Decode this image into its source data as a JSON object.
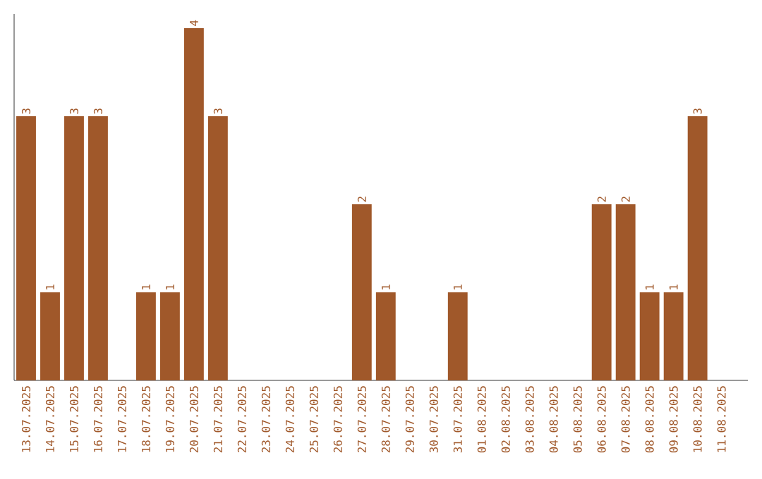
{
  "chart_data": {
    "type": "bar",
    "categories": [
      "13.07.2025",
      "14.07.2025",
      "15.07.2025",
      "16.07.2025",
      "17.07.2025",
      "18.07.2025",
      "19.07.2025",
      "20.07.2025",
      "21.07.2025",
      "22.07.2025",
      "23.07.2025",
      "24.07.2025",
      "25.07.2025",
      "26.07.2025",
      "27.07.2025",
      "28.07.2025",
      "29.07.2025",
      "30.07.2025",
      "31.07.2025",
      "01.08.2025",
      "02.08.2025",
      "03.08.2025",
      "04.08.2025",
      "05.08.2025",
      "06.08.2025",
      "07.08.2025",
      "08.08.2025",
      "09.08.2025",
      "10.08.2025",
      "11.08.2025"
    ],
    "values": [
      3,
      1,
      3,
      3,
      0,
      1,
      1,
      4,
      3,
      0,
      0,
      0,
      0,
      0,
      2,
      1,
      0,
      0,
      1,
      0,
      0,
      0,
      0,
      0,
      2,
      2,
      1,
      1,
      3,
      0
    ],
    "value_labels": [
      "3",
      "1",
      "3",
      "3",
      null,
      "1",
      "1",
      "4",
      "3",
      null,
      null,
      null,
      null,
      null,
      "2",
      "1",
      null,
      null,
      "1",
      null,
      null,
      null,
      null,
      null,
      "2",
      "2",
      "1",
      "1",
      "3",
      null
    ],
    "color": "#a0582a",
    "tick_labels": "x"
  }
}
